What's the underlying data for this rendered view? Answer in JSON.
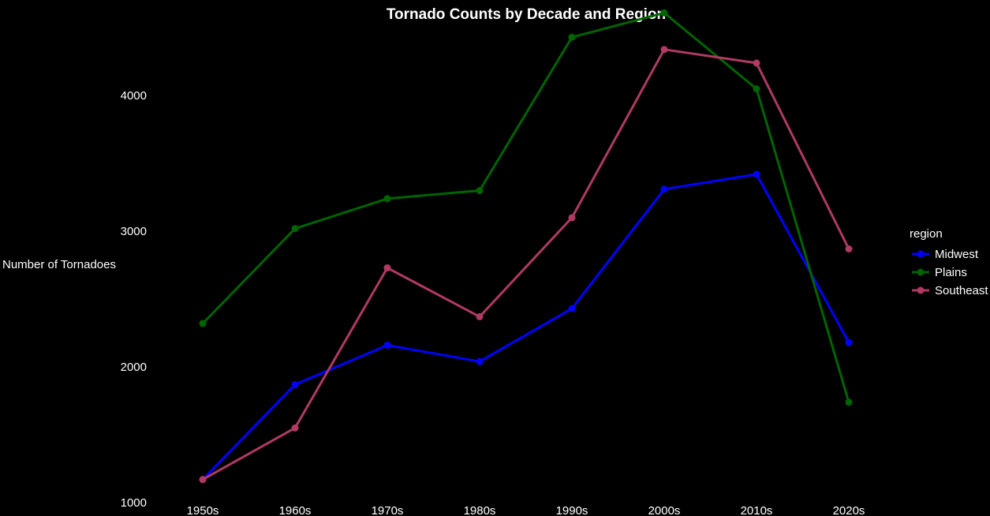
{
  "chart_data": {
    "type": "line",
    "title": "Tornado Counts by Decade and Region",
    "xlabel": "",
    "ylabel": "Number of Tornadoes",
    "categories": [
      "1950s",
      "1960s",
      "1970s",
      "1980s",
      "1990s",
      "2000s",
      "2010s",
      "2020s"
    ],
    "ylim": [
      1000,
      4600
    ],
    "yticks": [
      1000,
      2000,
      3000,
      4000
    ],
    "yticks_labels": [
      "1000",
      "2000",
      "3000",
      "4000"
    ],
    "grid": false,
    "legend": {
      "title": "region",
      "placement": "right"
    },
    "series": [
      {
        "name": "Midwest",
        "color": "#0000ff",
        "values": [
          1170,
          1870,
          2160,
          2040,
          2430,
          3310,
          3420,
          2180
        ]
      },
      {
        "name": "Plains",
        "color": "#006400",
        "values": [
          2320,
          3020,
          3240,
          3300,
          4430,
          4610,
          4050,
          1740
        ]
      },
      {
        "name": "Southeast",
        "color": "#b03a61",
        "values": [
          1170,
          1550,
          2730,
          2370,
          3100,
          4340,
          4240,
          2870
        ]
      }
    ]
  }
}
